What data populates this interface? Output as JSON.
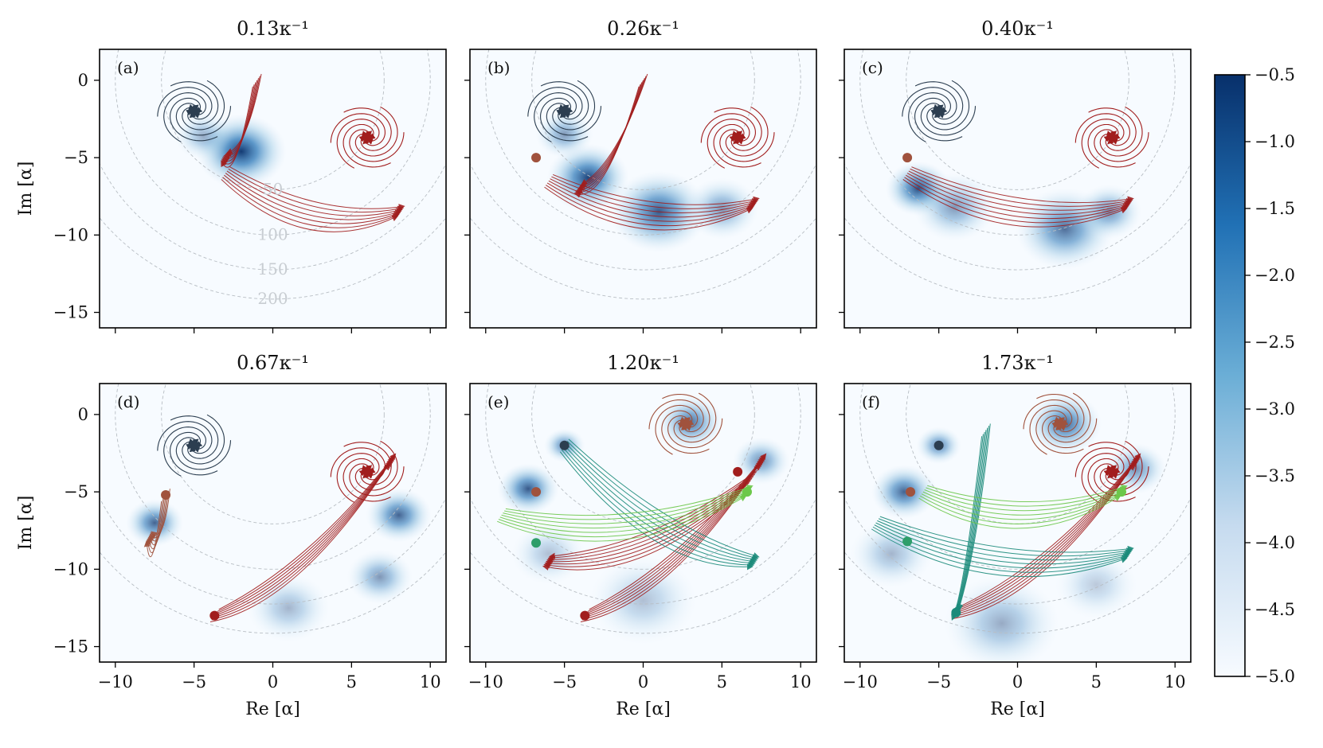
{
  "chart_data": {
    "type": "heatmap",
    "description_axes": {
      "xlabel": "Re [α]",
      "ylabel": "Im [α]",
      "xlim": [
        -11,
        11
      ],
      "ylim": [
        -16,
        2
      ],
      "xticks": [
        -10,
        -5,
        0,
        5,
        10
      ],
      "yticks": [
        0,
        -5,
        -10,
        -15
      ]
    },
    "colorbar": {
      "range": [
        -5.0,
        -0.5
      ],
      "ticks": [
        "−0.5",
        "−1.0",
        "−1.5",
        "−2.0",
        "−2.5",
        "−3.0",
        "−3.5",
        "−4.0",
        "−4.5",
        "−5.0"
      ],
      "colormap": "Blues"
    },
    "contour_labels": [
      "50",
      "100",
      "150",
      "200"
    ],
    "contour_radii_sq": [
      50,
      100,
      150,
      200
    ],
    "colors": {
      "dark": "#2c3e50",
      "red": "#a11d1d",
      "brown": "#a0523d",
      "teal": "#1a8a7a",
      "lightgreen": "#6cc84a",
      "green": "#2e9e6a"
    },
    "panels": [
      {
        "letter": "(a)",
        "title": "0.13κ⁻¹",
        "fixed_points": [
          {
            "x": -5,
            "y": -2,
            "color": "dark"
          },
          {
            "x": 6,
            "y": -3.7,
            "color": "red"
          }
        ],
        "density_blobs": [
          {
            "x": -2,
            "y": -4.6,
            "r": 2.2,
            "i": 0.95
          },
          {
            "x": -4.4,
            "y": -3.6,
            "r": 1.4,
            "i": 0.4
          }
        ],
        "flows": [
          {
            "type": "spiral",
            "cx": -5,
            "cy": -2,
            "color": "dark"
          },
          {
            "type": "spiral",
            "cx": 6,
            "cy": -3.7,
            "color": "red"
          },
          {
            "type": "arc",
            "from": [
              -1,
              0
            ],
            "to": [
              -3,
              -5
            ],
            "color": "red"
          },
          {
            "type": "arc",
            "from": [
              -3,
              -6
            ],
            "to": [
              8,
              -8.5
            ],
            "color": "red"
          }
        ]
      },
      {
        "letter": "(b)",
        "title": "0.26κ⁻¹",
        "fixed_points": [
          {
            "x": -5,
            "y": -2,
            "color": "dark"
          },
          {
            "x": 6,
            "y": -3.7,
            "color": "red"
          },
          {
            "x": -6.8,
            "y": -5,
            "color": "brown"
          }
        ],
        "density_blobs": [
          {
            "x": -5,
            "y": -3.5,
            "r": 1.4,
            "i": 0.5
          },
          {
            "x": -3.5,
            "y": -6.3,
            "r": 2.0,
            "i": 0.9
          },
          {
            "x": 1,
            "y": -8.5,
            "r": 2.4,
            "i": 0.8
          },
          {
            "x": 5,
            "y": -8.3,
            "r": 1.8,
            "i": 0.5
          }
        ],
        "flows": [
          {
            "type": "spiral",
            "cx": -5,
            "cy": -2,
            "color": "dark"
          },
          {
            "type": "spiral",
            "cx": 6,
            "cy": -3.7,
            "color": "red"
          },
          {
            "type": "arc",
            "from": [
              0,
              0
            ],
            "to": [
              -4,
              -7
            ],
            "color": "red"
          },
          {
            "type": "arc",
            "from": [
              -6,
              -6.5
            ],
            "to": [
              7,
              -8
            ],
            "color": "red"
          }
        ]
      },
      {
        "letter": "(c)",
        "title": "0.40κ⁻¹",
        "fixed_points": [
          {
            "x": -5,
            "y": -2,
            "color": "dark"
          },
          {
            "x": 6,
            "y": -3.7,
            "color": "red"
          },
          {
            "x": -7,
            "y": -5,
            "color": "brown"
          }
        ],
        "density_blobs": [
          {
            "x": -6.3,
            "y": -7,
            "r": 1.6,
            "i": 0.85
          },
          {
            "x": -4,
            "y": -8.2,
            "r": 2.0,
            "i": 0.5
          },
          {
            "x": 3,
            "y": -9.6,
            "r": 2.4,
            "i": 0.7
          },
          {
            "x": 5.8,
            "y": -8.5,
            "r": 1.6,
            "i": 0.55
          }
        ],
        "flows": [
          {
            "type": "spiral",
            "cx": -5,
            "cy": -2,
            "color": "dark"
          },
          {
            "type": "spiral",
            "cx": 6,
            "cy": -3.7,
            "color": "red"
          },
          {
            "type": "arc",
            "from": [
              -7,
              -6
            ],
            "to": [
              7,
              -8
            ],
            "color": "red"
          }
        ]
      },
      {
        "letter": "(d)",
        "title": "0.67κ⁻¹",
        "fixed_points": [
          {
            "x": -5,
            "y": -2,
            "color": "dark"
          },
          {
            "x": 6,
            "y": -3.7,
            "color": "red"
          },
          {
            "x": -6.8,
            "y": -5.2,
            "color": "brown"
          },
          {
            "x": -3.7,
            "y": -13,
            "color": "red"
          }
        ],
        "density_blobs": [
          {
            "x": -7.5,
            "y": -7,
            "r": 1.4,
            "i": 0.75
          },
          {
            "x": 8,
            "y": -6.5,
            "r": 1.6,
            "i": 0.75
          },
          {
            "x": 6.8,
            "y": -10.5,
            "r": 1.6,
            "i": 0.5
          },
          {
            "x": 1,
            "y": -12.5,
            "r": 2.0,
            "i": 0.35
          }
        ],
        "flows": [
          {
            "type": "spiral",
            "cx": -5,
            "cy": -2,
            "color": "dark"
          },
          {
            "type": "spiral",
            "cx": 6,
            "cy": -3.7,
            "color": "red"
          },
          {
            "type": "arc",
            "from": [
              -3.7,
              -13
            ],
            "to": [
              7.5,
              -3
            ],
            "color": "red"
          },
          {
            "type": "arc",
            "from": [
              -6.8,
              -5.2
            ],
            "to": [
              -7.8,
              -8
            ],
            "color": "brown"
          }
        ]
      },
      {
        "letter": "(e)",
        "title": "1.20κ⁻¹",
        "fixed_points": [
          {
            "x": -5,
            "y": -2,
            "color": "dark"
          },
          {
            "x": 6,
            "y": -3.7,
            "color": "red"
          },
          {
            "x": -6.8,
            "y": -5,
            "color": "brown"
          },
          {
            "x": 2.7,
            "y": -0.6,
            "color": "brown"
          },
          {
            "x": -3.7,
            "y": -13,
            "color": "red"
          },
          {
            "x": -6.8,
            "y": -8.3,
            "color": "green"
          },
          {
            "x": 6.6,
            "y": -5,
            "color": "lightgreen"
          }
        ],
        "density_blobs": [
          {
            "x": -7.3,
            "y": -4.8,
            "r": 1.5,
            "i": 0.8
          },
          {
            "x": -5,
            "y": -2,
            "r": 1.0,
            "i": 0.6
          },
          {
            "x": 3,
            "y": -0.5,
            "r": 1.6,
            "i": 0.7
          },
          {
            "x": 7.5,
            "y": -3,
            "r": 1.4,
            "i": 0.55
          },
          {
            "x": 0,
            "y": -12,
            "r": 2.6,
            "i": 0.3
          },
          {
            "x": -6,
            "y": -9,
            "r": 1.8,
            "i": 0.3
          }
        ],
        "flows": [
          {
            "type": "spiral",
            "cx": 2.7,
            "cy": -0.6,
            "color": "brown"
          },
          {
            "type": "arc",
            "from": [
              -3.7,
              -13
            ],
            "to": [
              7.5,
              -3
            ],
            "color": "red"
          },
          {
            "type": "arc",
            "from": [
              7,
              -4
            ],
            "to": [
              -6,
              -9.5
            ],
            "color": "red"
          },
          {
            "type": "arc",
            "from": [
              -5,
              -2
            ],
            "to": [
              7,
              -9.5
            ],
            "color": "teal"
          },
          {
            "type": "arc",
            "from": [
              -9,
              -6.5
            ],
            "to": [
              6.6,
              -5
            ],
            "color": "lightgreen"
          }
        ]
      },
      {
        "letter": "(f)",
        "title": "1.73κ⁻¹",
        "fixed_points": [
          {
            "x": -5,
            "y": -2,
            "color": "dark"
          },
          {
            "x": 6,
            "y": -3.7,
            "color": "red"
          },
          {
            "x": -6.8,
            "y": -5,
            "color": "brown"
          },
          {
            "x": 2.7,
            "y": -0.6,
            "color": "brown"
          },
          {
            "x": -3.9,
            "y": -12.8,
            "color": "teal"
          },
          {
            "x": -7,
            "y": -8.2,
            "color": "green"
          },
          {
            "x": 6.6,
            "y": -5,
            "color": "lightgreen"
          }
        ],
        "density_blobs": [
          {
            "x": -7.2,
            "y": -5,
            "r": 1.6,
            "i": 0.75
          },
          {
            "x": -5,
            "y": -2,
            "r": 1.1,
            "i": 0.6
          },
          {
            "x": 3,
            "y": -0.6,
            "r": 1.8,
            "i": 0.75
          },
          {
            "x": 7.5,
            "y": -3.5,
            "r": 1.5,
            "i": 0.55
          },
          {
            "x": -1,
            "y": -13.5,
            "r": 2.8,
            "i": 0.4
          },
          {
            "x": -8,
            "y": -9,
            "r": 2.0,
            "i": 0.35
          },
          {
            "x": 5,
            "y": -11,
            "r": 2.0,
            "i": 0.25
          }
        ],
        "flows": [
          {
            "type": "spiral",
            "cx": 2.7,
            "cy": -0.6,
            "color": "brown"
          },
          {
            "type": "spiral",
            "cx": 6,
            "cy": -3.7,
            "color": "red"
          },
          {
            "type": "arc",
            "from": [
              -3.9,
              -12.8
            ],
            "to": [
              7.5,
              -3
            ],
            "color": "red"
          },
          {
            "type": "arc",
            "from": [
              -2,
              -1
            ],
            "to": [
              -3.9,
              -12.8
            ],
            "color": "teal"
          },
          {
            "type": "arc",
            "from": [
              -9,
              -7
            ],
            "to": [
              7,
              -9
            ],
            "color": "teal"
          },
          {
            "type": "arc",
            "from": [
              -6,
              -5
            ],
            "to": [
              6.6,
              -5
            ],
            "color": "lightgreen"
          }
        ]
      }
    ]
  }
}
